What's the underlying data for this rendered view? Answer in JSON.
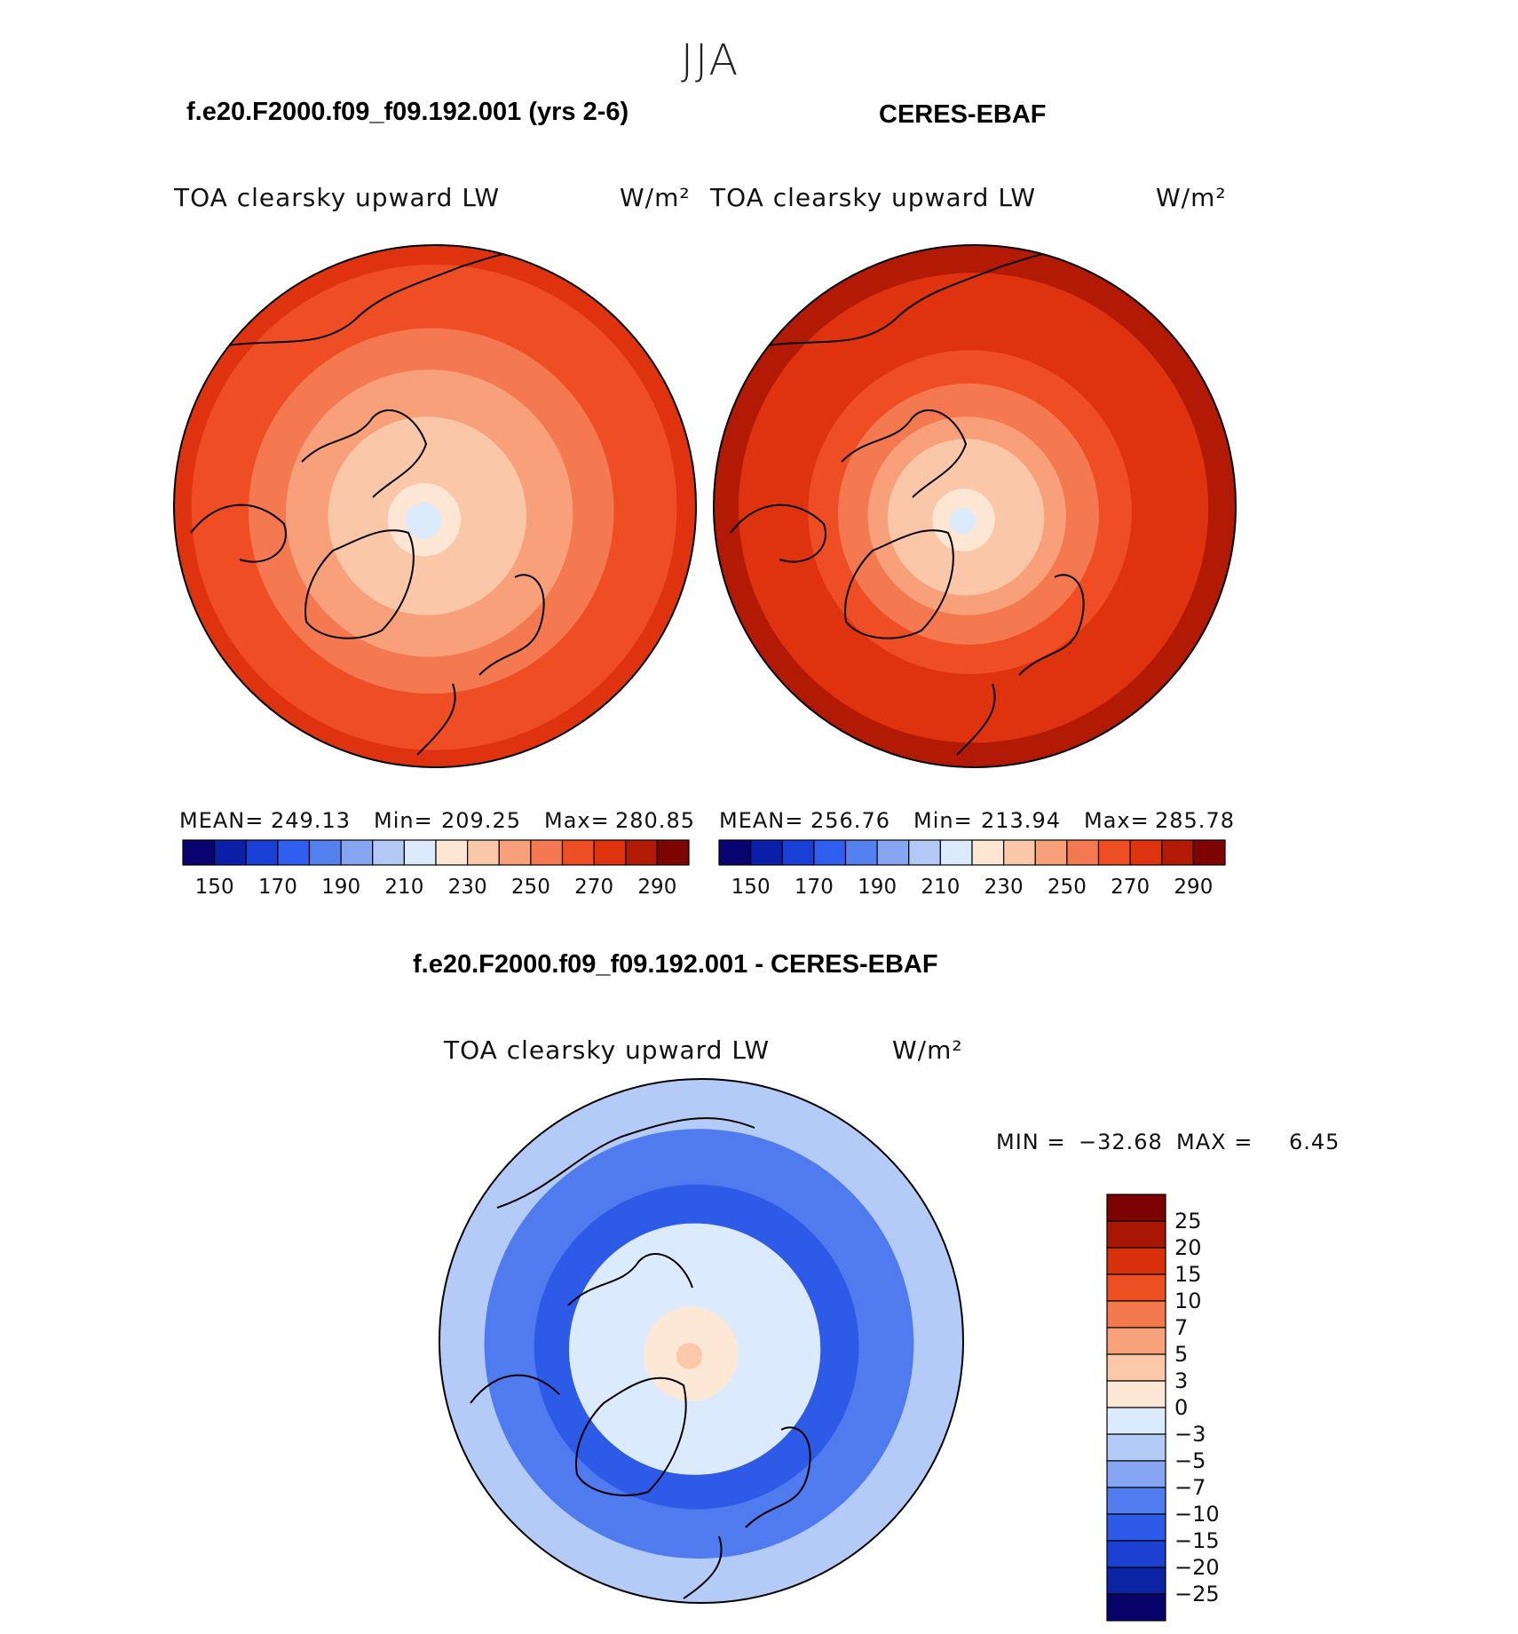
{
  "chart_data": {
    "type": "heatmap",
    "title": "JJA",
    "projection": "north polar stereographic",
    "panels": [
      {
        "id": "model",
        "case_title": "f.e20.F2000.f09_f09.192.001 (yrs 2-6)",
        "variable": "TOA clearsky upward LW",
        "units": "W/m²",
        "mean_label": "MEAN=",
        "mean": "249.13",
        "min_label": "Min=",
        "min": "209.25",
        "max_label": "Max=",
        "max": "280.85",
        "rings": [
          {
            "r": 1.0,
            "level": 270
          },
          {
            "r": 0.93,
            "level": 260
          },
          {
            "r": 0.7,
            "level": 250
          },
          {
            "r": 0.55,
            "level": 240
          },
          {
            "r": 0.38,
            "level": 230
          },
          {
            "r": 0.14,
            "level": 220
          },
          {
            "r": 0.07,
            "level": 210
          }
        ]
      },
      {
        "id": "obs",
        "case_title": "CERES-EBAF",
        "variable": "TOA clearsky upward LW",
        "units": "W/m²",
        "mean_label": "MEAN=",
        "mean": "256.76",
        "min_label": "Min=",
        "min": "213.94",
        "max_label": "Max=",
        "max": "285.78",
        "rings": [
          {
            "r": 1.0,
            "level": 280
          },
          {
            "r": 0.9,
            "level": 270
          },
          {
            "r": 0.62,
            "level": 260
          },
          {
            "r": 0.5,
            "level": 250
          },
          {
            "r": 0.38,
            "level": 240
          },
          {
            "r": 0.3,
            "level": 230
          },
          {
            "r": 0.12,
            "level": 220
          },
          {
            "r": 0.05,
            "level": 210
          }
        ]
      }
    ],
    "abs_colorbar": {
      "levels": [
        150,
        160,
        170,
        180,
        190,
        200,
        210,
        220,
        230,
        240,
        250,
        260,
        270,
        280,
        290
      ],
      "tick_labels": [
        "150",
        "170",
        "190",
        "210",
        "230",
        "250",
        "270",
        "290"
      ],
      "colors": [
        "#08036e",
        "#0b1fa8",
        "#1a3fd6",
        "#2f5ef0",
        "#5580f0",
        "#86a6f2",
        "#b3caf6",
        "#dcebfc",
        "#fde6d3",
        "#fbc7a9",
        "#f8a07a",
        "#f47850",
        "#ef4e24",
        "#df330f",
        "#b31a06",
        "#7e0303"
      ]
    },
    "difference": {
      "title": "f.e20.F2000.f09_f09.192.001 - CERES-EBAF",
      "variable": "TOA clearsky upward LW",
      "units": "W/m²",
      "min_label": "MIN =",
      "min": "−32.68",
      "max_label": "MAX =",
      "max": "6.45",
      "levels": [
        -25,
        -20,
        -15,
        -10,
        -7,
        -5,
        -3,
        0,
        3,
        5,
        7,
        10,
        15,
        20,
        25
      ],
      "tick_labels": [
        "25",
        "20",
        "15",
        "10",
        "7",
        "5",
        "3",
        "0",
        "−3",
        "−5",
        "−7",
        "−10",
        "−15",
        "−20",
        "−25"
      ],
      "colors": [
        "#07036b",
        "#0b22a3",
        "#1b3fd0",
        "#2d5ae6",
        "#4f7bee",
        "#86a6f3",
        "#b4cbf7",
        "#dbeafc",
        "#fde8d6",
        "#fbc9a9",
        "#f8a27c",
        "#f47a4e",
        "#ee4f22",
        "#d9300c",
        "#a91604",
        "#7c0202"
      ],
      "rings": [
        {
          "r": 1.0,
          "level": -5
        },
        {
          "r": 0.82,
          "level": -10
        },
        {
          "r": 0.62,
          "level": -15
        },
        {
          "r": 0.48,
          "level": -3
        },
        {
          "r": 0.18,
          "level": 0
        },
        {
          "r": 0.05,
          "level": 3
        }
      ]
    }
  }
}
